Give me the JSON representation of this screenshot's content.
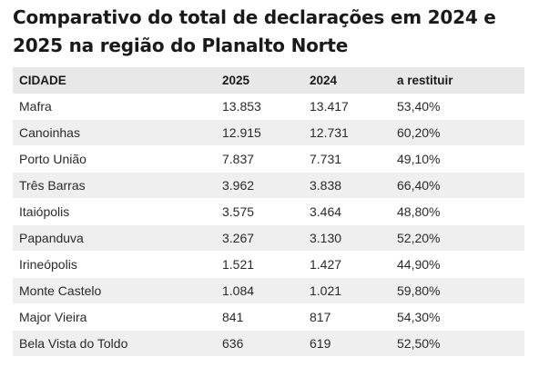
{
  "title": "Comparativo do total de declarações em 2024 e 2025 na região do Planalto Norte",
  "chart_data": {
    "type": "table",
    "title": "Comparativo do total de declarações em 2024 e 2025 na região do Planalto Norte",
    "columns": [
      "CIDADE",
      "2025",
      "2024",
      "a restituir"
    ],
    "rows": [
      [
        "Mafra",
        "13.853",
        "13.417",
        "53,40%"
      ],
      [
        "Canoinhas",
        "12.915",
        "12.731",
        "60,20%"
      ],
      [
        "Porto União",
        "7.837",
        "7.731",
        "49,10%"
      ],
      [
        "Três Barras",
        "3.962",
        "3.838",
        "66,40%"
      ],
      [
        "Itaiópolis",
        "3.575",
        "3.464",
        "48,80%"
      ],
      [
        "Papanduva",
        "3.267",
        "3.130",
        "52,20%"
      ],
      [
        "Irineópolis",
        "1.521",
        "1.427",
        "44,90%"
      ],
      [
        "Monte Castelo",
        "1.084",
        "1.021",
        "59,80%"
      ],
      [
        "Major Vieira",
        "841",
        "817",
        "54,30%"
      ],
      [
        "Bela Vista do Toldo",
        "636",
        "619",
        "52,50%"
      ]
    ],
    "colors": {
      "header_bg": "#e8e8e8",
      "stripe_bg": "#efefef"
    }
  }
}
